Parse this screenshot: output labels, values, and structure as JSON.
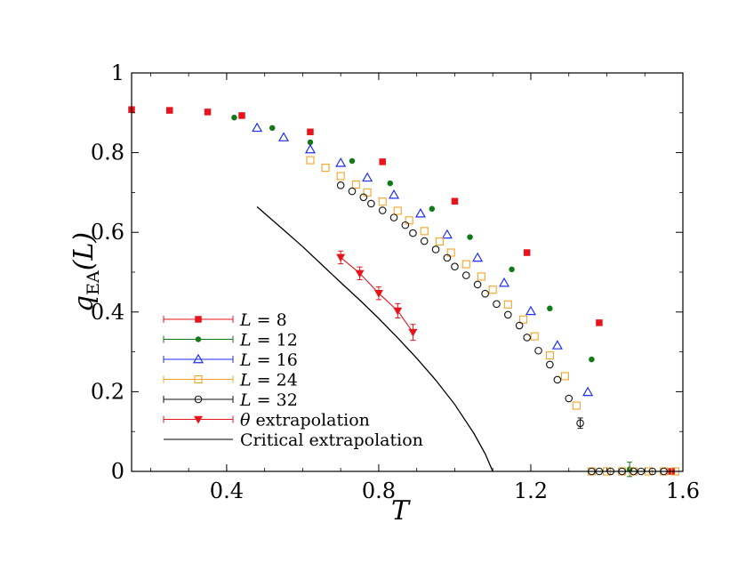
{
  "chart_data": {
    "type": "scatter",
    "xlabel": "T",
    "ylabel": "q_EA(L)",
    "xlim": [
      0.15,
      1.6
    ],
    "ylim": [
      0,
      1
    ],
    "x_ticks": [
      {
        "value": 0.4,
        "label": "0.4"
      },
      {
        "value": 0.8,
        "label": "0.8"
      },
      {
        "value": 1.2,
        "label": "1.2"
      },
      {
        "value": 1.6,
        "label": "1.6"
      }
    ],
    "y_ticks": [
      {
        "value": 0,
        "label": "0"
      },
      {
        "value": 0.2,
        "label": "0.2"
      },
      {
        "value": 0.4,
        "label": "0.4"
      },
      {
        "value": 0.6,
        "label": "0.6"
      },
      {
        "value": 0.8,
        "label": "0.8"
      },
      {
        "value": 1,
        "label": "1"
      }
    ],
    "legend_position": "lower-left",
    "series": [
      {
        "name": "L = 8",
        "legend_main": "L",
        "legend_rest": " = 8",
        "marker": "filled-square",
        "color": "#e8141b",
        "points": [
          [
            0.15,
            0.908
          ],
          [
            0.25,
            0.906
          ],
          [
            0.35,
            0.902
          ],
          [
            0.44,
            0.893
          ],
          [
            0.62,
            0.852
          ],
          [
            0.81,
            0.777
          ],
          [
            1.0,
            0.678
          ],
          [
            1.19,
            0.549
          ],
          [
            1.38,
            0.373
          ],
          [
            1.57,
            0.0
          ]
        ]
      },
      {
        "name": "L = 12",
        "legend_main": "L",
        "legend_rest": " = 12",
        "marker": "filled-circle",
        "color": "#117a16",
        "points": [
          [
            0.42,
            0.888
          ],
          [
            0.52,
            0.862
          ],
          [
            0.62,
            0.826
          ],
          [
            0.73,
            0.779
          ],
          [
            0.83,
            0.723
          ],
          [
            0.94,
            0.659
          ],
          [
            1.04,
            0.588
          ],
          [
            1.15,
            0.507
          ],
          [
            1.25,
            0.409
          ],
          [
            1.36,
            0.281
          ],
          [
            1.46,
            0.005
          ]
        ],
        "errors": [
          [
            1.46,
            0.005,
            0.018
          ]
        ]
      },
      {
        "name": "L = 16",
        "legend_main": "L",
        "legend_rest": " = 16",
        "marker": "open-triangle",
        "color": "#1d2ff0",
        "points": [
          [
            0.48,
            0.862
          ],
          [
            0.55,
            0.838
          ],
          [
            0.62,
            0.808
          ],
          [
            0.7,
            0.774
          ],
          [
            0.77,
            0.737
          ],
          [
            0.84,
            0.694
          ],
          [
            0.91,
            0.647
          ],
          [
            0.98,
            0.594
          ],
          [
            1.06,
            0.536
          ],
          [
            1.13,
            0.473
          ],
          [
            1.2,
            0.402
          ],
          [
            1.27,
            0.316
          ],
          [
            1.35,
            0.199
          ]
        ]
      },
      {
        "name": "L = 24",
        "legend_main": "L",
        "legend_rest": " = 24",
        "marker": "open-square",
        "color": "#f5a326",
        "points": [
          [
            0.62,
            0.781
          ],
          [
            0.66,
            0.762
          ],
          [
            0.7,
            0.741
          ],
          [
            0.74,
            0.72
          ],
          [
            0.77,
            0.7
          ],
          [
            0.81,
            0.677
          ],
          [
            0.85,
            0.654
          ],
          [
            0.88,
            0.63
          ],
          [
            0.92,
            0.603
          ],
          [
            0.96,
            0.577
          ],
          [
            0.99,
            0.549
          ],
          [
            1.03,
            0.52
          ],
          [
            1.07,
            0.489
          ],
          [
            1.1,
            0.456
          ],
          [
            1.14,
            0.419
          ],
          [
            1.18,
            0.381
          ],
          [
            1.21,
            0.339
          ],
          [
            1.25,
            0.291
          ],
          [
            1.29,
            0.239
          ],
          [
            1.32,
            0.165
          ],
          [
            1.36,
            0.0
          ],
          [
            1.4,
            0.0
          ],
          [
            1.44,
            0.0
          ],
          [
            1.47,
            0.0
          ],
          [
            1.51,
            0.0
          ],
          [
            1.55,
            0.0
          ],
          [
            1.58,
            0.0
          ]
        ]
      },
      {
        "name": "L = 32",
        "legend_main": "L",
        "legend_rest": " = 32",
        "marker": "open-circle",
        "color": "#111111",
        "points": [
          [
            0.7,
            0.718
          ],
          [
            0.73,
            0.703
          ],
          [
            0.76,
            0.688
          ],
          [
            0.78,
            0.672
          ],
          [
            0.81,
            0.655
          ],
          [
            0.84,
            0.637
          ],
          [
            0.87,
            0.618
          ],
          [
            0.89,
            0.598
          ],
          [
            0.92,
            0.578
          ],
          [
            0.95,
            0.557
          ],
          [
            0.98,
            0.536
          ],
          [
            1.0,
            0.514
          ],
          [
            1.03,
            0.492
          ],
          [
            1.06,
            0.469
          ],
          [
            1.08,
            0.446
          ],
          [
            1.11,
            0.42
          ],
          [
            1.14,
            0.393
          ],
          [
            1.17,
            0.366
          ],
          [
            1.19,
            0.336
          ],
          [
            1.22,
            0.303
          ],
          [
            1.25,
            0.268
          ],
          [
            1.27,
            0.23
          ],
          [
            1.3,
            0.183
          ],
          [
            1.33,
            0.121
          ],
          [
            1.36,
            0.0
          ],
          [
            1.38,
            0.0
          ],
          [
            1.41,
            0.0
          ],
          [
            1.44,
            0.0
          ],
          [
            1.47,
            0.0
          ],
          [
            1.49,
            0.0
          ],
          [
            1.52,
            0.0
          ],
          [
            1.55,
            0.0
          ]
        ],
        "errors": [
          [
            1.33,
            0.121,
            0.013
          ]
        ]
      },
      {
        "name": "θ extrapolation",
        "legend_main": "θ",
        "legend_rest": "  extrapolation",
        "marker": "filled-triangle-down",
        "color": "#e8141b",
        "connect": true,
        "points": [
          [
            0.7,
            0.537
          ],
          [
            0.75,
            0.497
          ],
          [
            0.8,
            0.447
          ],
          [
            0.85,
            0.403
          ],
          [
            0.89,
            0.349
          ]
        ],
        "errors": [
          [
            0.7,
            0.537,
            0.016
          ],
          [
            0.75,
            0.497,
            0.016
          ],
          [
            0.8,
            0.447,
            0.016
          ],
          [
            0.85,
            0.403,
            0.018
          ],
          [
            0.89,
            0.349,
            0.02
          ]
        ]
      },
      {
        "name": "Critical extrapolation",
        "legend_main": "",
        "legend_rest": "Critical extrapolation",
        "marker": "line",
        "color": "#000000",
        "curve": [
          [
            0.48,
            0.664
          ],
          [
            0.55,
            0.606
          ],
          [
            0.6,
            0.564
          ],
          [
            0.65,
            0.519
          ],
          [
            0.7,
            0.474
          ],
          [
            0.75,
            0.43
          ],
          [
            0.8,
            0.384
          ],
          [
            0.85,
            0.335
          ],
          [
            0.9,
            0.284
          ],
          [
            0.95,
            0.229
          ],
          [
            1.0,
            0.168
          ],
          [
            1.05,
            0.096
          ],
          [
            1.08,
            0.044
          ],
          [
            1.1,
            0.0
          ]
        ]
      }
    ]
  }
}
